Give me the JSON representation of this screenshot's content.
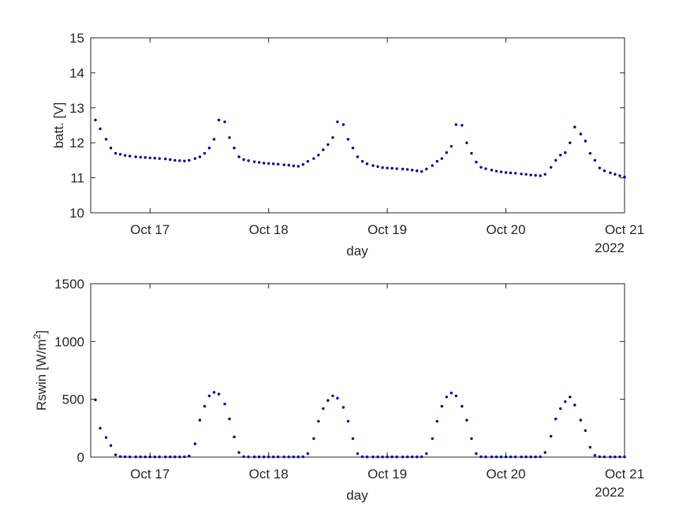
{
  "chart_data": [
    {
      "type": "scatter",
      "xlabel": "day",
      "ylabel": "batt. [V]",
      "year_label": "2022",
      "xticks": [
        "Oct 17",
        "Oct 18",
        "Oct 19",
        "Oct 20",
        "Oct 21"
      ],
      "xtick_values": [
        17,
        18,
        19,
        20,
        21
      ],
      "xlim": [
        16.5,
        21
      ],
      "ylim": [
        10,
        15
      ],
      "yticks": [
        10,
        11,
        12,
        13,
        14,
        15
      ],
      "marker_color": "#00008b",
      "x": [
        16.54,
        16.58,
        16.63,
        16.67,
        16.71,
        16.75,
        16.79,
        16.83,
        16.88,
        16.92,
        16.96,
        17.0,
        17.04,
        17.08,
        17.13,
        17.17,
        17.21,
        17.25,
        17.29,
        17.33,
        17.38,
        17.42,
        17.46,
        17.5,
        17.54,
        17.58,
        17.63,
        17.67,
        17.71,
        17.75,
        17.79,
        17.83,
        17.88,
        17.92,
        17.96,
        18.0,
        18.04,
        18.08,
        18.13,
        18.17,
        18.21,
        18.25,
        18.29,
        18.33,
        18.38,
        18.42,
        18.46,
        18.5,
        18.54,
        18.58,
        18.63,
        18.67,
        18.71,
        18.75,
        18.79,
        18.83,
        18.88,
        18.92,
        18.96,
        19.0,
        19.04,
        19.08,
        19.13,
        19.17,
        19.21,
        19.25,
        19.29,
        19.33,
        19.38,
        19.42,
        19.46,
        19.5,
        19.54,
        19.58,
        19.63,
        19.67,
        19.71,
        19.75,
        19.79,
        19.83,
        19.88,
        19.92,
        19.96,
        20.0,
        20.04,
        20.08,
        20.13,
        20.17,
        20.21,
        20.25,
        20.29,
        20.33,
        20.38,
        20.42,
        20.46,
        20.5,
        20.54,
        20.58,
        20.63,
        20.67,
        20.71,
        20.75,
        20.79,
        20.83,
        20.88,
        20.92,
        20.96,
        21.0
      ],
      "y": [
        12.65,
        12.4,
        12.1,
        11.85,
        11.7,
        11.67,
        11.64,
        11.62,
        11.6,
        11.59,
        11.58,
        11.57,
        11.56,
        11.55,
        11.54,
        11.52,
        11.5,
        11.49,
        11.48,
        11.5,
        11.55,
        11.6,
        11.7,
        11.85,
        12.1,
        12.65,
        12.6,
        12.15,
        11.85,
        11.6,
        11.52,
        11.49,
        11.46,
        11.44,
        11.42,
        11.41,
        11.4,
        11.39,
        11.37,
        11.36,
        11.34,
        11.33,
        11.38,
        11.47,
        11.55,
        11.65,
        11.8,
        11.95,
        12.15,
        12.6,
        12.52,
        12.1,
        11.85,
        11.6,
        11.47,
        11.4,
        11.35,
        11.32,
        11.29,
        11.28,
        11.27,
        11.26,
        11.25,
        11.24,
        11.22,
        11.2,
        11.18,
        11.25,
        11.35,
        11.47,
        11.55,
        11.72,
        11.9,
        12.52,
        12.5,
        12.0,
        11.7,
        11.45,
        11.3,
        11.26,
        11.22,
        11.19,
        11.17,
        11.15,
        11.14,
        11.13,
        11.11,
        11.1,
        11.08,
        11.07,
        11.06,
        11.1,
        11.3,
        11.5,
        11.65,
        11.72,
        12.0,
        12.45,
        12.25,
        12.05,
        11.7,
        11.5,
        11.28,
        11.2,
        11.14,
        11.1,
        11.06,
        11.02
      ]
    },
    {
      "type": "scatter",
      "xlabel": "day",
      "ylabel_main": "Rswin [W/m",
      "ylabel_sup": "2",
      "ylabel_tail": "]",
      "year_label": "2022",
      "xticks": [
        "Oct 17",
        "Oct 18",
        "Oct 19",
        "Oct 20",
        "Oct 21"
      ],
      "xtick_values": [
        17,
        18,
        19,
        20,
        21
      ],
      "xlim": [
        16.5,
        21
      ],
      "ylim": [
        0,
        1500
      ],
      "yticks": [
        0,
        500,
        1000,
        1500
      ],
      "marker_color": "#00008b",
      "x": [
        16.54,
        16.58,
        16.63,
        16.67,
        16.71,
        16.75,
        16.79,
        16.83,
        16.88,
        16.92,
        16.96,
        17.0,
        17.04,
        17.08,
        17.13,
        17.17,
        17.21,
        17.25,
        17.29,
        17.33,
        17.38,
        17.42,
        17.46,
        17.5,
        17.54,
        17.58,
        17.63,
        17.67,
        17.71,
        17.75,
        17.79,
        17.83,
        17.88,
        17.92,
        17.96,
        18.0,
        18.04,
        18.08,
        18.13,
        18.17,
        18.21,
        18.25,
        18.29,
        18.33,
        18.38,
        18.42,
        18.46,
        18.5,
        18.54,
        18.58,
        18.63,
        18.67,
        18.71,
        18.75,
        18.79,
        18.83,
        18.88,
        18.92,
        18.96,
        19.0,
        19.04,
        19.08,
        19.13,
        19.17,
        19.21,
        19.25,
        19.29,
        19.33,
        19.38,
        19.42,
        19.46,
        19.5,
        19.54,
        19.58,
        19.63,
        19.67,
        19.71,
        19.75,
        19.79,
        19.83,
        19.88,
        19.92,
        19.96,
        20.0,
        20.04,
        20.08,
        20.13,
        20.17,
        20.21,
        20.25,
        20.29,
        20.33,
        20.38,
        20.42,
        20.46,
        20.5,
        20.54,
        20.58,
        20.63,
        20.67,
        20.71,
        20.75,
        20.79,
        20.83,
        20.88,
        20.92,
        20.96,
        21.0
      ],
      "y": [
        495,
        250,
        170,
        100,
        20,
        5,
        3,
        2,
        2,
        2,
        2,
        2,
        2,
        2,
        2,
        2,
        2,
        2,
        3,
        10,
        115,
        320,
        440,
        530,
        560,
        545,
        460,
        330,
        175,
        40,
        4,
        2,
        2,
        2,
        2,
        2,
        2,
        2,
        2,
        2,
        2,
        2,
        3,
        30,
        160,
        310,
        420,
        490,
        530,
        510,
        430,
        310,
        160,
        30,
        3,
        2,
        2,
        2,
        2,
        2,
        2,
        2,
        2,
        2,
        2,
        2,
        3,
        30,
        160,
        310,
        440,
        520,
        555,
        530,
        440,
        320,
        160,
        30,
        3,
        2,
        2,
        2,
        2,
        2,
        2,
        2,
        2,
        2,
        2,
        2,
        3,
        40,
        180,
        330,
        420,
        480,
        520,
        450,
        320,
        230,
        85,
        15,
        3,
        2,
        2,
        2,
        2,
        2
      ]
    }
  ]
}
